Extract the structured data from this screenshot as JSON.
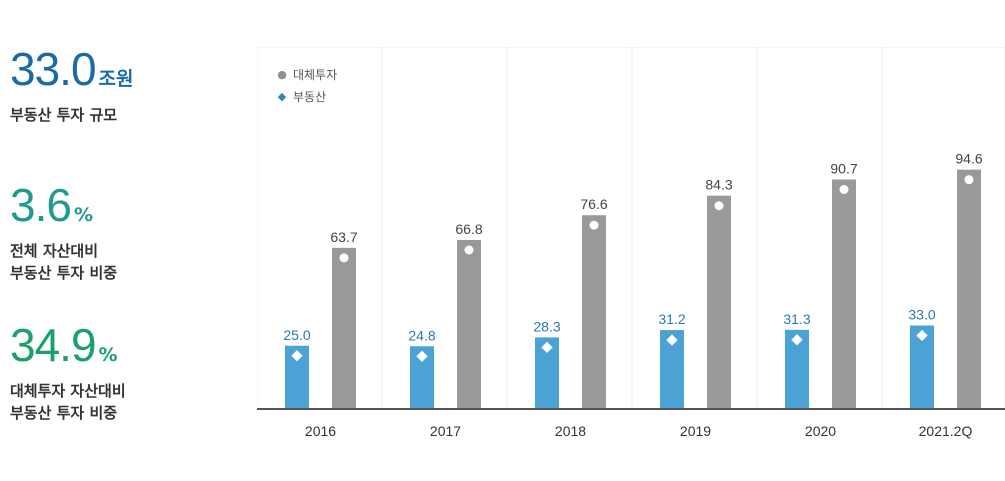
{
  "stats": [
    {
      "value": "33.0",
      "unit": "조원",
      "desc": "부동산 투자 규모",
      "color": "#1a6aa8"
    },
    {
      "value": "3.6",
      "unit": "%",
      "desc": "전체 자산대비\n부동산 투자 비중",
      "color": "#1f9a8e"
    },
    {
      "value": "34.9",
      "unit": "%",
      "desc": "대체투자 자산대비\n부동산 투자 비중",
      "color": "#1aa06a"
    }
  ],
  "legend": [
    {
      "marker": "●",
      "label": "대체투자",
      "color": "#8f8f8f"
    },
    {
      "marker": "◆",
      "label": "부동산",
      "color": "#2f86c4"
    }
  ],
  "chart_data": {
    "type": "bar",
    "categories": [
      "2016",
      "2017",
      "2018",
      "2019",
      "2020",
      "2021.2Q"
    ],
    "series": [
      {
        "name": "부동산",
        "values": [
          25.0,
          24.8,
          28.3,
          31.2,
          31.3,
          33.0
        ],
        "color": "#4aa3d4",
        "label_color": "#2a78b8",
        "marker": "diamond"
      },
      {
        "name": "대체투자",
        "values": [
          63.7,
          66.8,
          76.6,
          84.3,
          90.7,
          94.6
        ],
        "color": "#999999",
        "label_color": "#444444",
        "marker": "circle"
      }
    ],
    "ylim": [
      0,
      100
    ],
    "grid": "vertical category separators",
    "legend_position": "top-left"
  }
}
